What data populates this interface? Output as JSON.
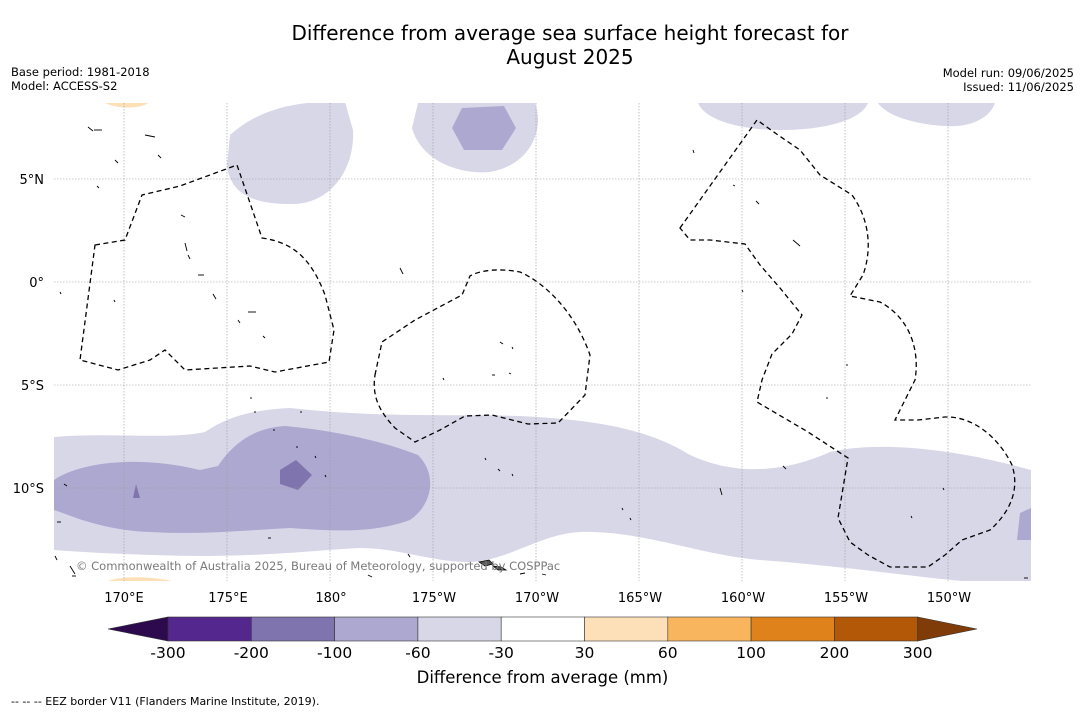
{
  "title_line1": "Difference from average sea surface height forecast for",
  "title_line2": "August 2025",
  "base_period": "Base period: 1981-2018",
  "model": "Model: ACCESS-S2",
  "model_run": "Model run: 09/06/2025",
  "issued": "Issued: 11/06/2025",
  "lon_labels": [
    "170°E",
    "175°E",
    "180°",
    "175°W",
    "170°W",
    "165°W",
    "160°W",
    "155°W",
    "150°W"
  ],
  "lat_labels": [
    "5°N",
    "0°",
    "5°S",
    "10°S"
  ],
  "copyright": "© Commonwealth of Australia 2025, Bureau of Meteorology, supported by COSPPac",
  "colorbar": {
    "ticks": [
      "-300",
      "-200",
      "-100",
      "-60",
      "-30",
      "30",
      "60",
      "100",
      "200",
      "300"
    ],
    "colors": {
      "lt_neg300": "#2d0a4e",
      "neg300_neg200": "#54278f",
      "neg200_neg100": "#7f74ad",
      "neg100_neg60": "#ada8d0",
      "neg60_neg30": "#d8d7e8",
      "neg30_30": "#ffffff",
      "p30_60": "#fde0b8",
      "p60_100": "#f9b55d",
      "p100_200": "#e0821b",
      "p200_300": "#b35806",
      "gt_300": "#7f3b08"
    },
    "title": "Difference from average (mm)"
  },
  "footer": "--  --  -- EEZ border V11 (Flanders Marine Institute, 2019)."
}
